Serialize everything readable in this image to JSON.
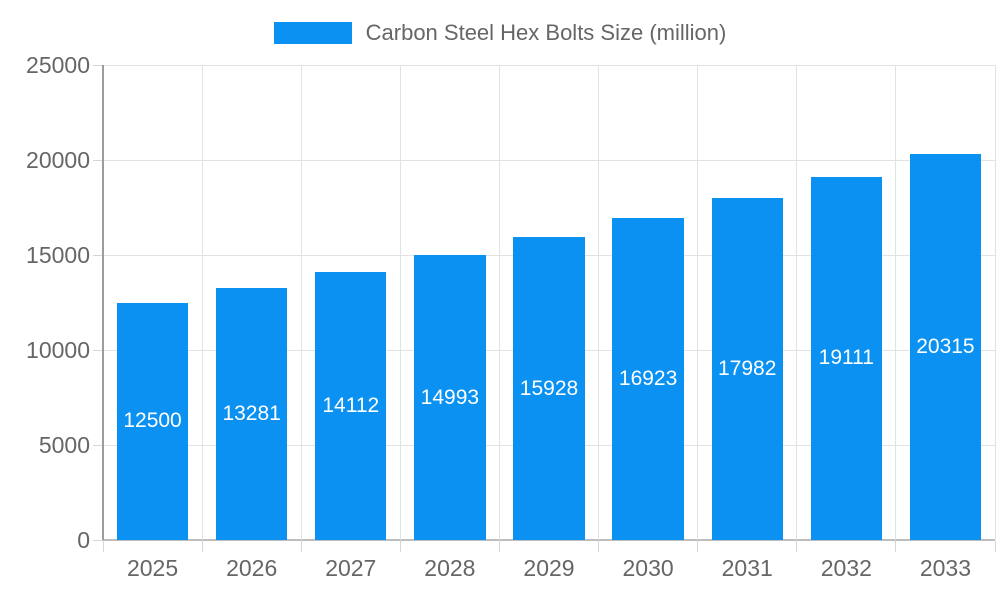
{
  "legend": {
    "label": "Carbon Steel Hex Bolts Size (million)"
  },
  "chart_data": {
    "type": "bar",
    "title": "Carbon Steel Hex Bolts Size (million)",
    "categories": [
      "2025",
      "2026",
      "2027",
      "2028",
      "2029",
      "2030",
      "2031",
      "2032",
      "2033"
    ],
    "values": [
      12500,
      13281,
      14112,
      14993,
      15928,
      16923,
      17982,
      19111,
      20315
    ],
    "xlabel": "",
    "ylabel": "",
    "ylim": [
      0,
      25000
    ],
    "y_ticks": [
      0,
      5000,
      10000,
      15000,
      20000,
      25000
    ],
    "grid": true,
    "legend_position": "top",
    "bar_labels": "inside-center-white"
  },
  "colors": {
    "bar": "#0a91f2",
    "grid": "#e2e2e2",
    "x_axis_line": "#bdbdbd",
    "y_axis_line": "#9c9c9c",
    "tick": "#d6d6d6",
    "axis_text": "#666666",
    "bar_label_text": "#ffffff"
  }
}
